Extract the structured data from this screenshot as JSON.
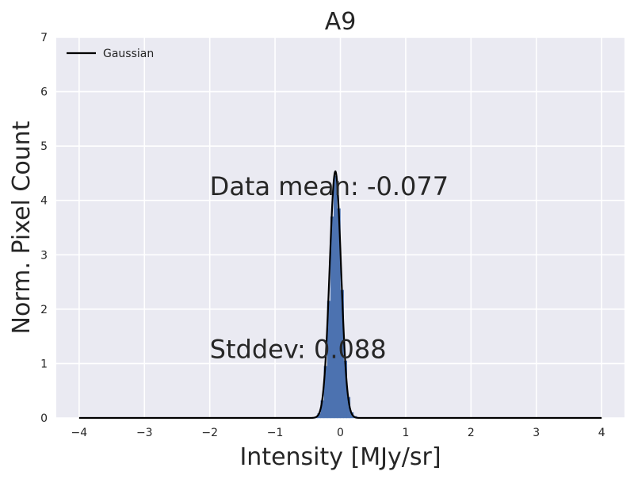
{
  "chart_data": {
    "type": "line",
    "title": "A9",
    "xlabel": "Intensity [MJy/sr]",
    "ylabel": "Norm. Pixel Count",
    "xlim": [
      -4.35,
      4.35
    ],
    "ylim": [
      0,
      7
    ],
    "x_ticks": [
      -4,
      -3,
      -2,
      -1,
      0,
      1,
      2,
      3,
      4
    ],
    "x_tick_labels": [
      "−4",
      "−3",
      "−2",
      "−1",
      "0",
      "1",
      "2",
      "3",
      "4"
    ],
    "y_ticks": [
      0,
      1,
      2,
      3,
      4,
      5,
      6,
      7
    ],
    "y_tick_labels": [
      "0",
      "1",
      "2",
      "3",
      "4",
      "5",
      "6",
      "7"
    ],
    "grid": true,
    "legend_position": "top-left",
    "series": [
      {
        "name": "Gaussian",
        "kind": "line",
        "color": "#000000",
        "mean": -0.077,
        "stddev": 0.088,
        "x_range": [
          -4,
          4
        ]
      },
      {
        "kind": "histogram",
        "color": "#4c72b0",
        "bins": [
          {
            "x0": -0.4,
            "x1": -0.35,
            "y": 0.01
          },
          {
            "x0": -0.35,
            "x1": -0.3,
            "y": 0.08
          },
          {
            "x0": -0.3,
            "x1": -0.25,
            "y": 0.32
          },
          {
            "x0": -0.25,
            "x1": -0.2,
            "y": 0.95
          },
          {
            "x0": -0.2,
            "x1": -0.15,
            "y": 2.15
          },
          {
            "x0": -0.15,
            "x1": -0.1,
            "y": 3.7
          },
          {
            "x0": -0.1,
            "x1": -0.05,
            "y": 4.45
          },
          {
            "x0": -0.05,
            "x1": 0.0,
            "y": 3.85
          },
          {
            "x0": 0.0,
            "x1": 0.05,
            "y": 2.35
          },
          {
            "x0": 0.05,
            "x1": 0.1,
            "y": 1.05
          },
          {
            "x0": 0.1,
            "x1": 0.15,
            "y": 0.38
          },
          {
            "x0": 0.15,
            "x1": 0.2,
            "y": 0.1
          },
          {
            "x0": 0.2,
            "x1": 0.25,
            "y": 0.03
          }
        ]
      }
    ],
    "annotations": [
      {
        "text": "Data mean: -0.077",
        "x": -2.0,
        "y": 4.1
      },
      {
        "text": "Stddev: 0.088",
        "x": -2.0,
        "y": 1.1
      }
    ],
    "colors": {
      "plot_background": "#eaeaf2",
      "grid": "#ffffff",
      "text": "#262626"
    }
  }
}
